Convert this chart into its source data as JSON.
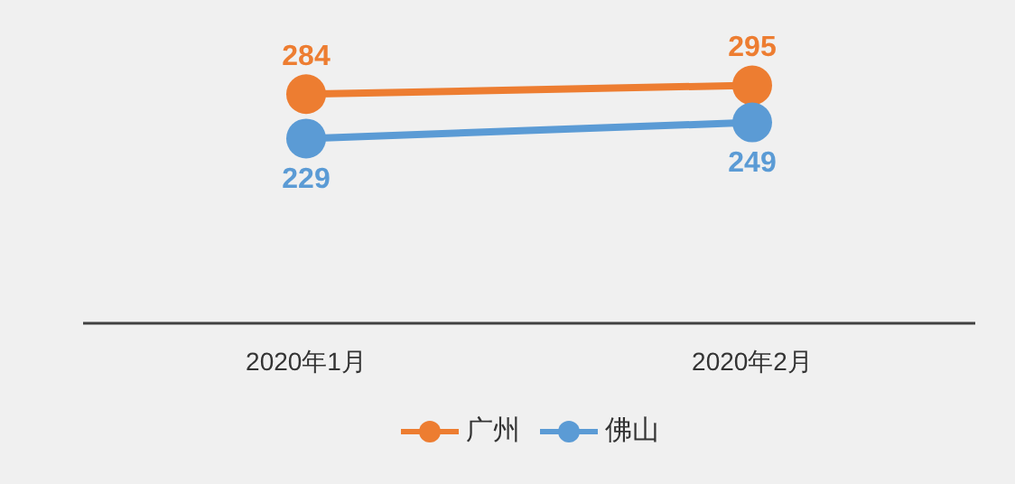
{
  "chart_data": {
    "type": "line",
    "categories": [
      "2020年1月",
      "2020年2月"
    ],
    "series": [
      {
        "name": "广州",
        "color": "#ed7d31",
        "values": [
          284,
          295
        ]
      },
      {
        "name": "佛山",
        "color": "#5b9bd5",
        "values": [
          229,
          249
        ]
      }
    ],
    "tick_labels": "x",
    "legend": "bottom",
    "marker": "circle",
    "data_labels": true
  }
}
